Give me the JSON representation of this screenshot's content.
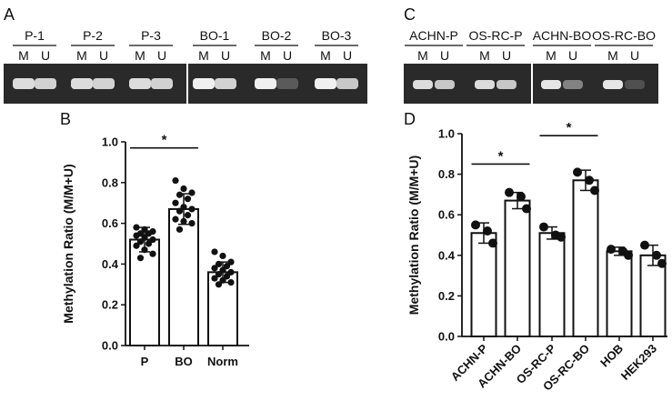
{
  "figure": {
    "panels": {
      "a": "A",
      "b": "B",
      "c": "C",
      "d": "D"
    }
  },
  "gel_a": {
    "groups": [
      {
        "label": "P-1",
        "mu": [
          "M",
          "U"
        ],
        "band": [
          0.85,
          0.8
        ]
      },
      {
        "label": "P-2",
        "mu": [
          "M",
          "U"
        ],
        "band": [
          0.85,
          0.8
        ]
      },
      {
        "label": "P-3",
        "mu": [
          "M",
          "U"
        ],
        "band": [
          0.85,
          0.8
        ]
      },
      {
        "label": "BO-1",
        "mu": [
          "M",
          "U"
        ],
        "band": [
          0.95,
          0.8
        ]
      },
      {
        "label": "BO-2",
        "mu": [
          "M",
          "U"
        ],
        "band": [
          0.95,
          0.2
        ]
      },
      {
        "label": "BO-3",
        "mu": [
          "M",
          "U"
        ],
        "band": [
          0.95,
          0.75
        ]
      }
    ]
  },
  "gel_c": {
    "groups": [
      {
        "label": "ACHN-P",
        "mu": [
          "M",
          "U"
        ],
        "band": [
          0.85,
          0.75
        ]
      },
      {
        "label": "OS-RC-P",
        "mu": [
          "M",
          "U"
        ],
        "band": [
          0.85,
          0.75
        ]
      },
      {
        "label": "ACHN-BO",
        "mu": [
          "M",
          "U"
        ],
        "band": [
          0.9,
          0.4
        ]
      },
      {
        "label": "OS-RC-BO",
        "mu": [
          "M",
          "U"
        ],
        "band": [
          0.9,
          0.15
        ]
      }
    ]
  },
  "chart_data": [
    {
      "type": "bar",
      "panel": "B",
      "title": "",
      "ylabel": "Methylation Ratio (M/M+U)",
      "xlabel": "",
      "ylim": [
        0.0,
        1.0
      ],
      "yticks": [
        "0.0",
        "0.2",
        "0.4",
        "0.6",
        "0.8",
        "1.0"
      ],
      "categories": [
        "P",
        "BO",
        "Norm"
      ],
      "values": [
        0.52,
        0.67,
        0.36
      ],
      "errors": [
        0.06,
        0.075,
        0.05
      ],
      "points": [
        [
          0.58,
          0.57,
          0.56,
          0.55,
          0.55,
          0.54,
          0.53,
          0.52,
          0.51,
          0.5,
          0.49,
          0.47,
          0.45,
          0.43
        ],
        [
          0.81,
          0.77,
          0.75,
          0.74,
          0.72,
          0.7,
          0.68,
          0.67,
          0.66,
          0.64,
          0.62,
          0.61,
          0.6,
          0.57
        ],
        [
          0.46,
          0.44,
          0.41,
          0.4,
          0.39,
          0.38,
          0.37,
          0.36,
          0.35,
          0.34,
          0.33,
          0.32,
          0.31,
          0.3
        ]
      ],
      "significance": [
        {
          "from": 0,
          "to": 1,
          "y": 0.97,
          "label": "*"
        }
      ],
      "grid": false
    },
    {
      "type": "bar",
      "panel": "D",
      "title": "",
      "ylabel": "Methylation Ratio (M/M+U)",
      "xlabel": "",
      "ylim": [
        0.0,
        1.0
      ],
      "yticks": [
        "0.0",
        "0.2",
        "0.4",
        "0.6",
        "0.8",
        "1.0"
      ],
      "categories": [
        "ACHN-P",
        "ACHN-BO",
        "OS-RC-P",
        "OS-RC-BO",
        "HOB",
        "HEK293"
      ],
      "values": [
        0.51,
        0.67,
        0.51,
        0.77,
        0.42,
        0.4
      ],
      "errors": [
        0.05,
        0.04,
        0.03,
        0.05,
        0.02,
        0.05
      ],
      "points": [
        [
          0.55,
          0.52,
          0.46
        ],
        [
          0.71,
          0.69,
          0.63
        ],
        [
          0.54,
          0.5,
          0.49
        ],
        [
          0.81,
          0.77,
          0.72
        ],
        [
          0.43,
          0.42,
          0.4
        ],
        [
          0.45,
          0.4,
          0.36
        ]
      ],
      "significance": [
        {
          "from": 0,
          "to": 1,
          "y": 0.85,
          "label": "*"
        },
        {
          "from": 2,
          "to": 3,
          "y": 0.99,
          "label": "*"
        }
      ],
      "grid": false
    }
  ]
}
